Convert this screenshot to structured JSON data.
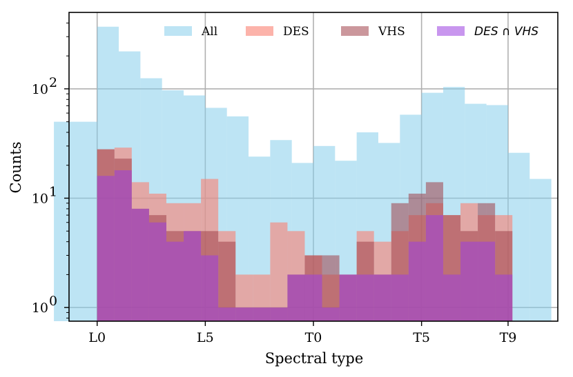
{
  "chart_data": {
    "type": "histogram",
    "title": "",
    "xlabel": "Spectral type",
    "ylabel": "Counts",
    "yscale": "log",
    "ylim": [
      0.75,
      500
    ],
    "xlim": [
      -1.3,
      21.3
    ],
    "grid": true,
    "legend_position": "top",
    "x_ticks": [
      {
        "value": 0,
        "label": "L0"
      },
      {
        "value": 5,
        "label": "L5"
      },
      {
        "value": 10,
        "label": "T0"
      },
      {
        "value": 15,
        "label": "T5"
      },
      {
        "value": 19,
        "label": "T9"
      }
    ],
    "y_ticks": [
      {
        "value": 1,
        "base": "10",
        "exp": "0"
      },
      {
        "value": 10,
        "base": "10",
        "exp": "1"
      },
      {
        "value": 100,
        "base": "10",
        "exp": "2"
      }
    ],
    "series": [
      {
        "name": "All",
        "color": "#87ceeb",
        "opacity": 0.55,
        "bins": [
          [
            -2,
            0,
            50
          ],
          [
            0,
            1,
            370
          ],
          [
            1,
            2,
            220
          ],
          [
            2,
            3,
            125
          ],
          [
            3,
            4,
            97
          ],
          [
            4,
            5,
            87
          ],
          [
            5,
            6,
            67
          ],
          [
            6,
            7,
            56
          ],
          [
            7,
            8,
            24
          ],
          [
            8,
            9,
            34
          ],
          [
            9,
            10,
            21
          ],
          [
            10,
            11,
            30
          ],
          [
            11,
            12,
            22
          ],
          [
            12,
            13,
            40
          ],
          [
            13,
            14,
            32
          ],
          [
            14,
            15,
            58
          ],
          [
            15,
            16,
            92
          ],
          [
            16,
            17,
            104
          ],
          [
            17,
            18,
            73
          ],
          [
            18,
            19,
            71
          ],
          [
            19,
            20,
            26
          ],
          [
            20,
            21,
            15
          ]
        ]
      },
      {
        "name": "DES",
        "color": "#fa8072",
        "opacity": 0.6,
        "bins": [
          [
            0,
            0.8,
            28
          ],
          [
            0.8,
            1.6,
            29
          ],
          [
            1.6,
            2.4,
            14
          ],
          [
            2.4,
            3.2,
            11
          ],
          [
            3.2,
            4,
            9
          ],
          [
            4,
            4.8,
            9
          ],
          [
            4.8,
            5.6,
            15
          ],
          [
            5.6,
            6.4,
            5
          ],
          [
            6.4,
            7.2,
            2
          ],
          [
            7.2,
            8,
            2
          ],
          [
            8,
            8.8,
            6
          ],
          [
            8.8,
            9.6,
            5
          ],
          [
            9.6,
            10.4,
            3
          ],
          [
            10.4,
            11.2,
            2
          ],
          [
            11.2,
            12,
            2
          ],
          [
            12,
            12.8,
            5
          ],
          [
            12.8,
            13.6,
            4
          ],
          [
            13.6,
            14.4,
            5
          ],
          [
            14.4,
            15.2,
            7
          ],
          [
            15.2,
            16,
            9
          ],
          [
            16,
            16.8,
            7
          ],
          [
            16.8,
            17.6,
            9
          ],
          [
            17.6,
            18.4,
            7
          ],
          [
            18.4,
            19.2,
            7
          ]
        ]
      },
      {
        "name": "VHS",
        "color": "#a0424b",
        "opacity": 0.55,
        "bins": [
          [
            0,
            0.8,
            28
          ],
          [
            0.8,
            1.6,
            23
          ],
          [
            1.6,
            2.4,
            8
          ],
          [
            2.4,
            3.2,
            7
          ],
          [
            3.2,
            4,
            5
          ],
          [
            4,
            4.8,
            5
          ],
          [
            4.8,
            5.6,
            5
          ],
          [
            5.6,
            6.4,
            4
          ],
          [
            6.4,
            7.2,
            1
          ],
          [
            7.2,
            8,
            1
          ],
          [
            8,
            8.8,
            1
          ],
          [
            8.8,
            9.6,
            2
          ],
          [
            9.6,
            10.4,
            3
          ],
          [
            10.4,
            11.2,
            3
          ],
          [
            11.2,
            12,
            2
          ],
          [
            12,
            12.8,
            4
          ],
          [
            12.8,
            13.6,
            2
          ],
          [
            13.6,
            14.4,
            9
          ],
          [
            14.4,
            15.2,
            11
          ],
          [
            15.2,
            16,
            14
          ],
          [
            16,
            16.8,
            7
          ],
          [
            16.8,
            17.6,
            5
          ],
          [
            17.6,
            18.4,
            9
          ],
          [
            18.4,
            19.2,
            5
          ]
        ]
      },
      {
        "name": "DES ∩ VHS",
        "color": "#9b40e0",
        "opacity": 0.55,
        "bins": [
          [
            0,
            0.8,
            16
          ],
          [
            0.8,
            1.6,
            18
          ],
          [
            1.6,
            2.4,
            8
          ],
          [
            2.4,
            3.2,
            6
          ],
          [
            3.2,
            4,
            4
          ],
          [
            4,
            4.8,
            5
          ],
          [
            4.8,
            5.6,
            3
          ],
          [
            5.6,
            6.4,
            1
          ],
          [
            6.4,
            7.2,
            1
          ],
          [
            7.2,
            8,
            1
          ],
          [
            8,
            8.8,
            1
          ],
          [
            8.8,
            9.6,
            2
          ],
          [
            9.6,
            10.4,
            2
          ],
          [
            10.4,
            11.2,
            1
          ],
          [
            11.2,
            12,
            2
          ],
          [
            12,
            12.8,
            2
          ],
          [
            12.8,
            13.6,
            2
          ],
          [
            13.6,
            14.4,
            2
          ],
          [
            14.4,
            15.2,
            4
          ],
          [
            15.2,
            16,
            7
          ],
          [
            16,
            16.8,
            2
          ],
          [
            16.8,
            17.6,
            4
          ],
          [
            17.6,
            18.4,
            4
          ],
          [
            18.4,
            19.2,
            2
          ]
        ]
      }
    ]
  }
}
